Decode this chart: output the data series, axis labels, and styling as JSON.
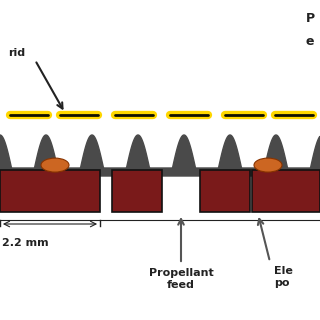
{
  "bg_color": "#ffffff",
  "dark_gray": "#4a4a4a",
  "dark_red": "#7a1a1a",
  "orange": "#cc6622",
  "yellow_dash": "#FFD700",
  "black": "#222222",
  "figsize": [
    3.2,
    3.2
  ],
  "dpi": 100,
  "dim_label": "2.2 mm",
  "prop_label": "Propellant\nfeed",
  "elec_label": "Ele\npo",
  "grid_label": "rid",
  "top_right_line1": "P",
  "top_right_line2": "e"
}
